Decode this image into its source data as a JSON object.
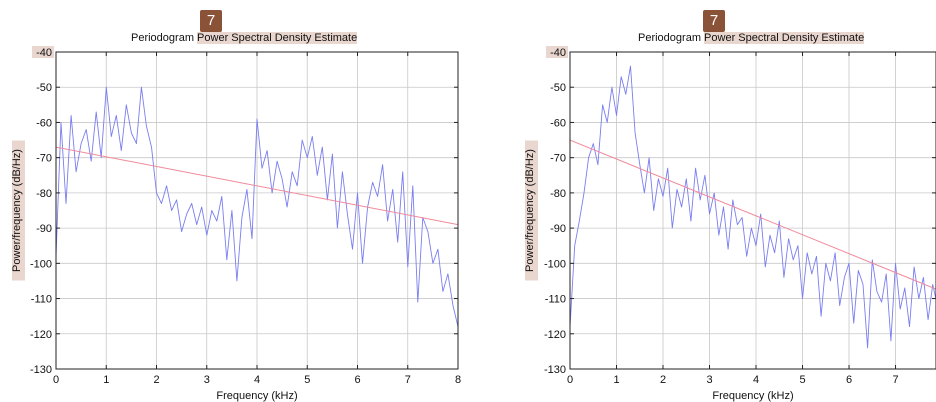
{
  "markers": [
    "7",
    "7"
  ],
  "colors": {
    "psd_line": "#7a7ef0",
    "trend_line": "#f08a9a",
    "grid": "#c8c8c8",
    "highlight": "#e9d7cf",
    "marker": "#8a5237"
  },
  "chart_data": [
    {
      "type": "line",
      "title_plain": "Periodogram ",
      "title_highlight": "Power Spectral Density Estimate",
      "xlabel": "Frequency (kHz)",
      "ylabel": "Power/frequency (dB/Hz)",
      "xlim": [
        0,
        8
      ],
      "ylim": [
        -130,
        -40
      ],
      "xticks": [
        0,
        1,
        2,
        3,
        4,
        5,
        6,
        7,
        8
      ],
      "yticks": [
        -40,
        -50,
        -60,
        -70,
        -80,
        -90,
        -100,
        -110,
        -120,
        -130
      ],
      "grid": true,
      "series": [
        {
          "role": "psd",
          "x": [
            0,
            0.1,
            0.2,
            0.3,
            0.4,
            0.5,
            0.6,
            0.7,
            0.8,
            0.9,
            1.0,
            1.1,
            1.2,
            1.3,
            1.4,
            1.5,
            1.6,
            1.7,
            1.8,
            1.9,
            2.0,
            2.1,
            2.2,
            2.3,
            2.4,
            2.5,
            2.6,
            2.7,
            2.8,
            2.9,
            3.0,
            3.1,
            3.2,
            3.3,
            3.4,
            3.5,
            3.6,
            3.7,
            3.8,
            3.9,
            4.0,
            4.1,
            4.2,
            4.3,
            4.4,
            4.5,
            4.6,
            4.7,
            4.8,
            4.9,
            5.0,
            5.1,
            5.2,
            5.3,
            5.4,
            5.5,
            5.6,
            5.7,
            5.8,
            5.9,
            6.0,
            6.1,
            6.2,
            6.3,
            6.4,
            6.5,
            6.6,
            6.7,
            6.8,
            6.9,
            7.0,
            7.1,
            7.2,
            7.3,
            7.4,
            7.5,
            7.6,
            7.7,
            7.8,
            7.9,
            8.0
          ],
          "y": [
            -98,
            -60,
            -83,
            -58,
            -74,
            -66,
            -62,
            -71,
            -57,
            -70,
            -50,
            -64,
            -58,
            -68,
            -55,
            -63,
            -66,
            -50,
            -61,
            -67,
            -80,
            -83,
            -78,
            -85,
            -82,
            -91,
            -86,
            -83,
            -89,
            -84,
            -92,
            -85,
            -88,
            -81,
            -99,
            -85,
            -105,
            -87,
            -79,
            -93,
            -59,
            -73,
            -68,
            -80,
            -71,
            -76,
            -84,
            -74,
            -78,
            -65,
            -70,
            -64,
            -75,
            -67,
            -82,
            -69,
            -90,
            -74,
            -86,
            -96,
            -80,
            -100,
            -84,
            -77,
            -81,
            -72,
            -88,
            -79,
            -94,
            -74,
            -101,
            -78,
            -111,
            -87,
            -91,
            -100,
            -96,
            -108,
            -103,
            -112,
            -118
          ]
        },
        {
          "role": "trend",
          "x": [
            0,
            8
          ],
          "y": [
            -67,
            -89
          ]
        }
      ]
    },
    {
      "type": "line",
      "title_plain": "Periodogram ",
      "title_highlight": "Power Spectral Density Estimate",
      "xlabel": "Frequency (kHz)",
      "ylabel": "Power/frequency (dB/Hz)",
      "xlim": [
        0,
        8
      ],
      "ylim": [
        -130,
        -40
      ],
      "xticks": [
        0,
        1,
        2,
        3,
        4,
        5,
        6,
        7
      ],
      "yticks": [
        -40,
        -50,
        -60,
        -70,
        -80,
        -90,
        -100,
        -110,
        -120,
        -130
      ],
      "grid": true,
      "series": [
        {
          "role": "psd",
          "x": [
            0,
            0.1,
            0.2,
            0.3,
            0.4,
            0.5,
            0.6,
            0.7,
            0.8,
            0.9,
            1.0,
            1.1,
            1.2,
            1.3,
            1.4,
            1.5,
            1.6,
            1.7,
            1.8,
            1.9,
            2.0,
            2.1,
            2.2,
            2.3,
            2.4,
            2.5,
            2.6,
            2.7,
            2.8,
            2.9,
            3.0,
            3.1,
            3.2,
            3.3,
            3.4,
            3.5,
            3.6,
            3.7,
            3.8,
            3.9,
            4.0,
            4.1,
            4.2,
            4.3,
            4.4,
            4.5,
            4.6,
            4.7,
            4.8,
            4.9,
            5.0,
            5.1,
            5.2,
            5.3,
            5.4,
            5.5,
            5.6,
            5.7,
            5.8,
            5.9,
            6.0,
            6.1,
            6.2,
            6.3,
            6.4,
            6.5,
            6.6,
            6.7,
            6.8,
            6.9,
            7.0,
            7.1,
            7.2,
            7.3,
            7.4,
            7.5,
            7.6,
            7.7,
            7.8,
            7.9,
            8.0
          ],
          "y": [
            -118,
            -95,
            -88,
            -80,
            -70,
            -66,
            -72,
            -55,
            -60,
            -50,
            -58,
            -47,
            -52,
            -44,
            -63,
            -72,
            -80,
            -70,
            -85,
            -76,
            -81,
            -73,
            -90,
            -79,
            -84,
            -76,
            -88,
            -73,
            -82,
            -75,
            -86,
            -80,
            -92,
            -84,
            -96,
            -82,
            -89,
            -87,
            -98,
            -90,
            -95,
            -86,
            -101,
            -92,
            -97,
            -88,
            -104,
            -93,
            -99,
            -95,
            -110,
            -97,
            -103,
            -98,
            -115,
            -100,
            -105,
            -97,
            -112,
            -104,
            -100,
            -117,
            -102,
            -106,
            -124,
            -99,
            -108,
            -111,
            -103,
            -122,
            -100,
            -113,
            -107,
            -118,
            -101,
            -110,
            -104,
            -116,
            -106,
            -112,
            -108
          ]
        },
        {
          "role": "trend",
          "x": [
            0,
            8
          ],
          "y": [
            -65,
            -108
          ]
        }
      ]
    }
  ]
}
